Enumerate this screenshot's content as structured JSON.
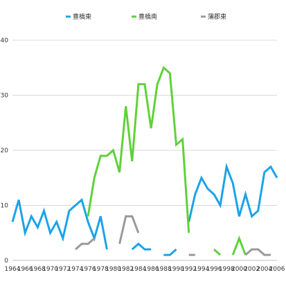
{
  "chart_data": {
    "type": "line",
    "title": "",
    "xlabel": "",
    "ylabel": "",
    "ylim": [
      0,
      40
    ],
    "yticks": [
      0,
      10,
      20,
      30,
      40
    ],
    "xlim": [
      1964,
      2006
    ],
    "xticks": [
      1964,
      1966,
      1968,
      1970,
      1972,
      1974,
      1976,
      1978,
      1980,
      1982,
      1984,
      1986,
      1988,
      1990,
      1992,
      1994,
      1996,
      1998,
      2000,
      2002,
      2004,
      2006
    ],
    "grid": "horizontal",
    "legend_position": "top",
    "x": [
      1964,
      1965,
      1966,
      1967,
      1968,
      1969,
      1970,
      1971,
      1972,
      1973,
      1974,
      1975,
      1976,
      1977,
      1978,
      1979,
      1980,
      1981,
      1982,
      1983,
      1984,
      1985,
      1986,
      1987,
      1988,
      1989,
      1990,
      1991,
      1992,
      1993,
      1994,
      1995,
      1996,
      1997,
      1998,
      1999,
      2000,
      2001,
      2002,
      2003,
      2004,
      2005,
      2006
    ],
    "series": [
      {
        "name": "豊橋東",
        "color": "#1aa3e8",
        "values": [
          7,
          11,
          5,
          8,
          6,
          9,
          5,
          7,
          4,
          9,
          10,
          11,
          7,
          4,
          8,
          2,
          null,
          null,
          null,
          2,
          3,
          2,
          2,
          null,
          1,
          1,
          2,
          null,
          7,
          12,
          15,
          13,
          12,
          10,
          17,
          14,
          8,
          12,
          8,
          9,
          16,
          17,
          15
        ]
      },
      {
        "name": "豊橋南",
        "color": "#5fd13a",
        "values": [
          null,
          null,
          null,
          null,
          null,
          null,
          null,
          null,
          null,
          null,
          null,
          null,
          8,
          15,
          19,
          19,
          20,
          16,
          28,
          18,
          32,
          32,
          24,
          32,
          35,
          34,
          21,
          22,
          5,
          null,
          null,
          null,
          2,
          1,
          null,
          1,
          4,
          1,
          null,
          null,
          null,
          null,
          null
        ]
      },
      {
        "name": "蒲郡東",
        "color": "#999999",
        "values": [
          null,
          null,
          null,
          null,
          null,
          null,
          null,
          null,
          null,
          null,
          2,
          3,
          3,
          4,
          null,
          null,
          null,
          3,
          8,
          8,
          5,
          null,
          null,
          null,
          null,
          null,
          null,
          null,
          1,
          1,
          null,
          null,
          null,
          null,
          null,
          null,
          null,
          1,
          2,
          2,
          1,
          1,
          null
        ]
      }
    ]
  }
}
